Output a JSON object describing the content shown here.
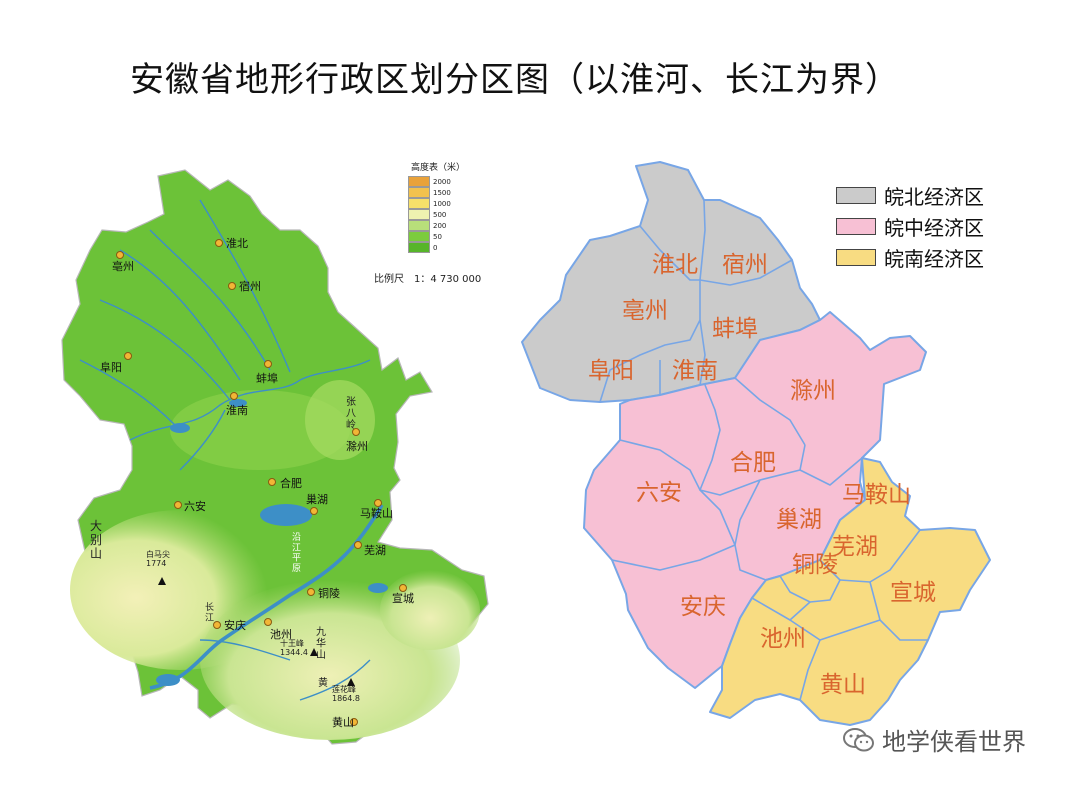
{
  "title": "安徽省地形行政区划分区图（以淮河、长江为界）",
  "terrain_map": {
    "legend_title": "高度表（米）",
    "elevation_levels": [
      {
        "value": "2000",
        "color": "#e9a23a"
      },
      {
        "value": "1500",
        "color": "#f2c24e"
      },
      {
        "value": "1000",
        "color": "#f7e06a"
      },
      {
        "value": "500",
        "color": "#eef2b0"
      },
      {
        "value": "200",
        "color": "#b8df7a"
      },
      {
        "value": "50",
        "color": "#7ccc3d"
      },
      {
        "value": "0",
        "color": "#57b52a"
      }
    ],
    "scale": "比例尺　1：4 730 000",
    "cities": [
      "淮北",
      "亳州",
      "宿州",
      "阜阳",
      "蚌埠",
      "淮南",
      "滁州",
      "合肥",
      "六安",
      "巢湖",
      "马鞍山",
      "芜湖",
      "铜陵",
      "宣城",
      "安庆",
      "池州",
      "黄山"
    ],
    "features": {
      "mountain_dabie": "大\n别\n山",
      "peak_baimajian": "白马尖\n1774",
      "zhangbaling": "张\n八\n岭",
      "yangtze": "长\n江",
      "jiuhua": "九\n华\n山",
      "shiwangfeng": "十王峰\n1344.4",
      "lianhuafeng": "莲花峰\n1864.8",
      "yangtze_plain": "沿\n江\n平\n原",
      "huang": "黄"
    }
  },
  "economic_map": {
    "legend": [
      {
        "label": "皖北经济区",
        "color": "#cbcbcb"
      },
      {
        "label": "皖中经济区",
        "color": "#f7c0d4"
      },
      {
        "label": "皖南经济区",
        "color": "#f8dc82"
      }
    ],
    "regions": {
      "north": [
        "淮北",
        "宿州",
        "亳州",
        "蚌埠",
        "阜阳",
        "淮南"
      ],
      "central": [
        "滁州",
        "合肥",
        "六安",
        "巢湖",
        "安庆"
      ],
      "south": [
        "马鞍山",
        "芜湖",
        "铜陵",
        "宣城",
        "池州",
        "黄山"
      ]
    },
    "label_color": "#d9652e",
    "border_color": "#78a6e6"
  },
  "watermark": "地学侠看世界"
}
